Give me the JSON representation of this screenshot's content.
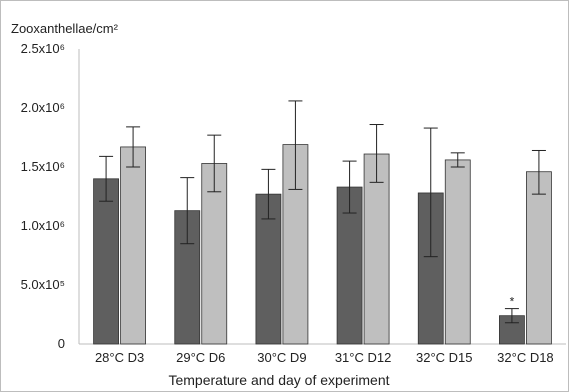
{
  "chart_data": {
    "type": "bar",
    "ylabel": "Zooxanthellae/cm²",
    "xlabel": "Temperature and day of experiment",
    "categories": [
      "28°C D3",
      "29°C D6",
      "30°C D9",
      "31°C D12",
      "32°C D15",
      "32°C D18"
    ],
    "y_ticks": [
      {
        "value": 0,
        "label": "0"
      },
      {
        "value": 500000,
        "label": "5.0x10⁵"
      },
      {
        "value": 1000000,
        "label": "1.0x10⁶"
      },
      {
        "value": 1500000,
        "label": "1.5x10⁶"
      },
      {
        "value": 2000000,
        "label": "2.0x10⁶"
      },
      {
        "value": 2500000,
        "label": "2.5x10⁶"
      }
    ],
    "ylim": [
      0,
      2500000
    ],
    "series": [
      {
        "color": "#5f5f5f",
        "values": [
          1400000,
          1130000,
          1270000,
          1330000,
          1280000,
          240000
        ],
        "error_low": [
          1210000,
          850000,
          1060000,
          1110000,
          740000,
          180000
        ],
        "error_high": [
          1590000,
          1410000,
          1480000,
          1550000,
          1830000,
          300000
        ]
      },
      {
        "color": "#bfbfbf",
        "values": [
          1670000,
          1530000,
          1690000,
          1610000,
          1560000,
          1460000
        ],
        "error_low": [
          1500000,
          1290000,
          1310000,
          1370000,
          1500000,
          1270000
        ],
        "error_high": [
          1840000,
          1770000,
          2060000,
          1860000,
          1620000,
          1640000
        ]
      }
    ],
    "annotations": [
      {
        "text": "*",
        "category_index": 5,
        "series_index": 0
      }
    ],
    "grid": false,
    "legend": "none"
  }
}
